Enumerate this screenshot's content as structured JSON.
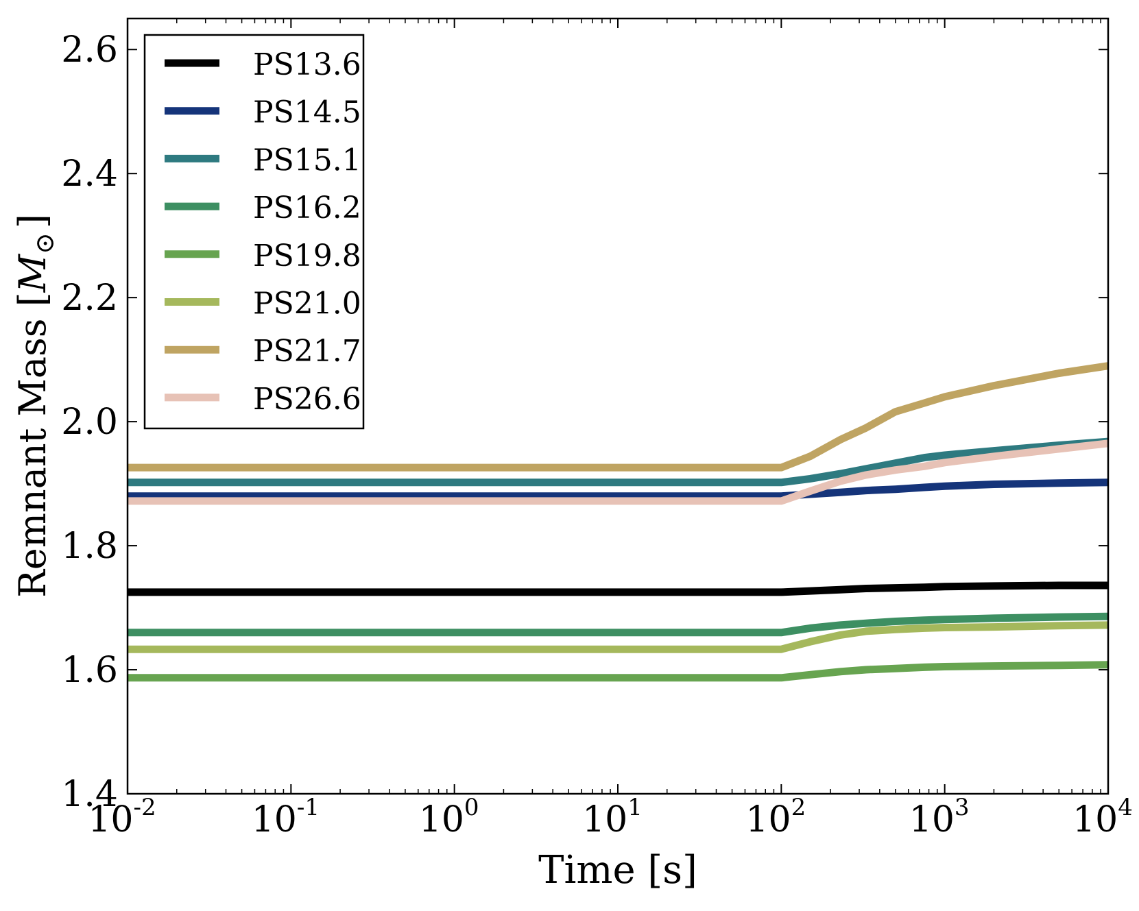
{
  "chart_data": {
    "type": "line",
    "title": "",
    "xlabel": "Time [s]",
    "ylabel_text": "Remnant Mass [",
    "ylabel_symbol": "M",
    "ylabel_subscript": "⊙",
    "ylabel_close": "]",
    "xscale": "log",
    "xlim": [
      0.01,
      10000
    ],
    "ylim": [
      1.4,
      2.65
    ],
    "x_ticks": [
      {
        "base": "10",
        "exp": "-2"
      },
      {
        "base": "10",
        "exp": "-1"
      },
      {
        "base": "10",
        "exp": "0"
      },
      {
        "base": "10",
        "exp": "1"
      },
      {
        "base": "10",
        "exp": "2"
      },
      {
        "base": "10",
        "exp": "3"
      },
      {
        "base": "10",
        "exp": "4"
      }
    ],
    "y_ticks": [
      "1.4",
      "1.6",
      "1.8",
      "2.0",
      "2.2",
      "2.4",
      "2.6"
    ],
    "legend_position": "top-left",
    "x": [
      0.01,
      100,
      150,
      230,
      330,
      500,
      750,
      1000,
      2000,
      5000,
      10000
    ],
    "series": [
      {
        "name": "PS13.6",
        "color": "#000000",
        "values": [
          1.725,
          1.725,
          1.727,
          1.729,
          1.731,
          1.732,
          1.733,
          1.734,
          1.735,
          1.736,
          1.736
        ]
      },
      {
        "name": "PS14.5",
        "color": "#15347a",
        "values": [
          1.88,
          1.88,
          1.883,
          1.886,
          1.889,
          1.891,
          1.894,
          1.896,
          1.899,
          1.901,
          1.902
        ]
      },
      {
        "name": "PS15.1",
        "color": "#2e7a80",
        "values": [
          1.902,
          1.902,
          1.908,
          1.916,
          1.924,
          1.933,
          1.942,
          1.946,
          1.953,
          1.962,
          1.968
        ]
      },
      {
        "name": "PS16.2",
        "color": "#3d8f62",
        "values": [
          1.66,
          1.66,
          1.667,
          1.672,
          1.675,
          1.678,
          1.68,
          1.681,
          1.683,
          1.685,
          1.686
        ]
      },
      {
        "name": "PS19.8",
        "color": "#67a450",
        "values": [
          1.587,
          1.587,
          1.592,
          1.597,
          1.6,
          1.602,
          1.604,
          1.605,
          1.606,
          1.607,
          1.608
        ]
      },
      {
        "name": "PS21.0",
        "color": "#a5b85c",
        "values": [
          1.633,
          1.633,
          1.645,
          1.656,
          1.662,
          1.665,
          1.667,
          1.668,
          1.669,
          1.671,
          1.672
        ]
      },
      {
        "name": "PS21.7",
        "color": "#bfa462",
        "values": [
          1.926,
          1.926,
          1.944,
          1.971,
          1.99,
          2.016,
          2.03,
          2.04,
          2.058,
          2.078,
          2.09
        ]
      },
      {
        "name": "PS26.6",
        "color": "#e7c2b6",
        "values": [
          1.872,
          1.872,
          1.888,
          1.904,
          1.914,
          1.922,
          1.928,
          1.934,
          1.944,
          1.956,
          1.965
        ]
      }
    ]
  }
}
